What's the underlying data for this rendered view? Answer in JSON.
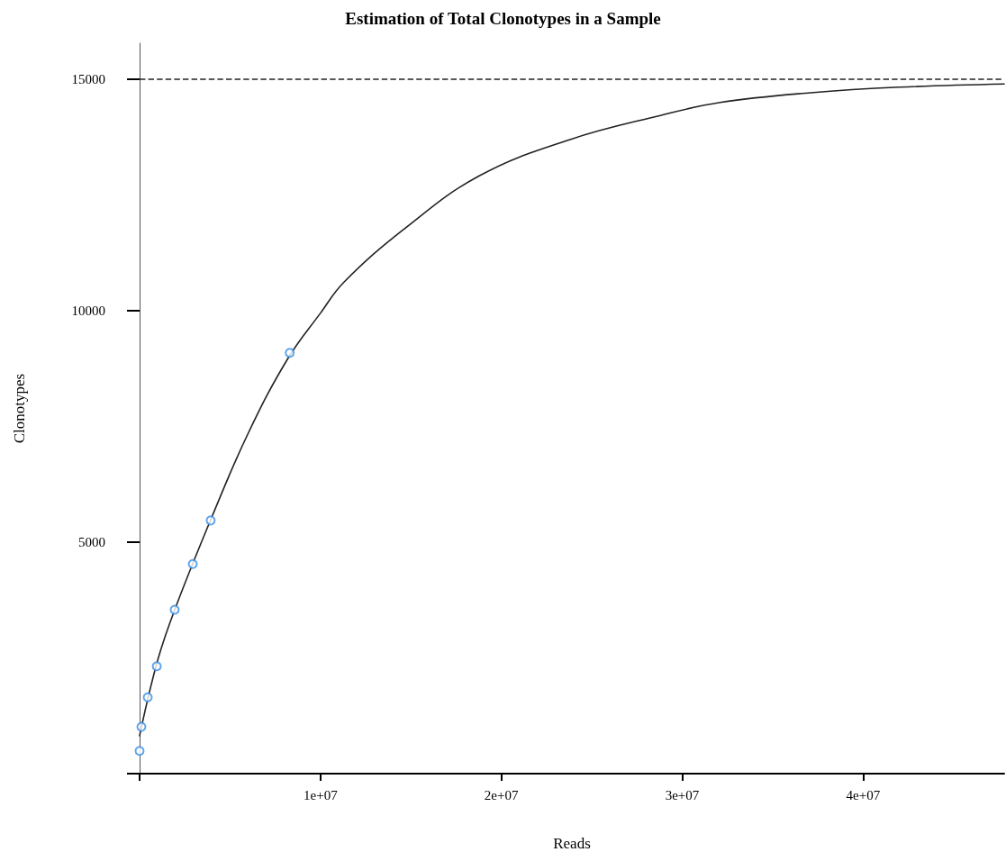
{
  "chart_data": {
    "type": "scatter",
    "title": "Estimation of Total Clonotypes in a Sample",
    "xlabel": "Reads",
    "ylabel": "Clonotypes",
    "xlim": [
      0,
      47800000
    ],
    "ylim": [
      0,
      15780
    ],
    "xticks": [
      {
        "value": 0,
        "label": null
      },
      {
        "value": 10000000,
        "label": "1e+07"
      },
      {
        "value": 20000000,
        "label": "2e+07"
      },
      {
        "value": 30000000,
        "label": "3e+07"
      },
      {
        "value": 40000000,
        "label": "4e+07"
      }
    ],
    "yticks": [
      {
        "value": 0,
        "label": null
      },
      5000,
      10000,
      15000
    ],
    "grid": false,
    "series": [
      {
        "type": "line",
        "color": "#222222",
        "marker": "none",
        "line_style": "solid",
        "x": [
          0,
          1000000,
          2000000,
          4000000,
          6000000,
          8200000,
          10000000,
          11300000,
          14700000,
          18800000,
          23800000,
          28800000,
          32100000,
          37100000,
          42000000,
          47800000
        ],
        "values": [
          820,
          2450,
          3600,
          5550,
          7350,
          8970,
          9950,
          10620,
          11790,
          12920,
          13700,
          14220,
          14500,
          14710,
          14830,
          14900
        ]
      },
      {
        "color": "#3a8ee6",
        "marker": "circle",
        "x": [
          0,
          100000,
          450000,
          950000,
          1940000,
          2940000,
          3930000,
          8300000
        ],
        "values": [
          490,
          1010,
          1650,
          2320,
          3540,
          4530,
          5470,
          9090
        ]
      }
    ],
    "ref_lines": [
      {
        "axis": "y",
        "value": 15000,
        "color": "#222222",
        "line_style": "dashed"
      }
    ]
  }
}
